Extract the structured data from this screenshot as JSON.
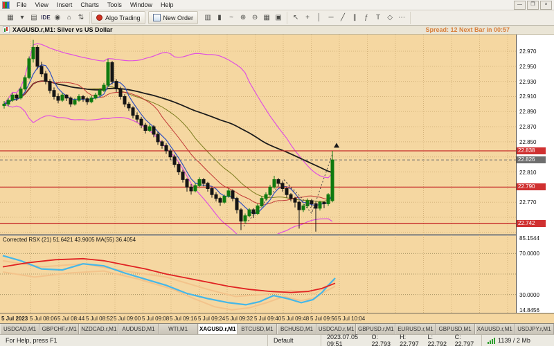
{
  "colors": {
    "chart_bg": "#f5d7a1",
    "grid": "#d4b37b",
    "red_line": "#c62828",
    "line_label_bg": "#d03030",
    "bid_label_bg": "#6e6e6e",
    "spread_text": "#d9803c",
    "up_candle": "#0f7a0f",
    "down_candle": "#151515",
    "ma_fast_blue": "#2e4fc0",
    "ma_mid_red": "#c03434",
    "ma_olive": "#7c7c1e",
    "ma_slow_black": "#1c1c1c",
    "bollinger": "#e050e0",
    "rsx_main": "#45b7e8",
    "rsx_signal": "#e02222",
    "rsx_band": "#f3c38b"
  },
  "menu": {
    "items": [
      "File",
      "View",
      "Insert",
      "Charts",
      "Tools",
      "Window",
      "Help"
    ],
    "window_controls": [
      {
        "name": "minimize-button",
        "glyph": "—"
      },
      {
        "name": "restore-button",
        "glyph": "❐"
      },
      {
        "name": "close-button",
        "glyph": "×"
      }
    ]
  },
  "toolbar": {
    "algo_trading_label": "Algo Trading",
    "new_order_label": "New Order",
    "group1": [
      {
        "n": "new-chart",
        "g": "▦"
      },
      {
        "n": "chart-dropdown",
        "g": "▾"
      },
      {
        "n": "profiles",
        "g": "▤"
      },
      {
        "n": "metaeditor-ide",
        "g": "IDE",
        "txt": true
      },
      {
        "n": "broadcast",
        "g": "◉"
      },
      {
        "n": "home",
        "g": "⌂"
      },
      {
        "n": "refresh-arrows",
        "g": "⇅"
      }
    ],
    "group2": [
      {
        "n": "bar-chart-mode",
        "g": "▥"
      },
      {
        "n": "candle-chart-mode",
        "g": "▮"
      },
      {
        "n": "line-chart-mode",
        "g": "~"
      },
      {
        "n": "zoom-in",
        "g": "⊕"
      },
      {
        "n": "zoom-out",
        "g": "⊖"
      },
      {
        "n": "tile-windows",
        "g": "▦"
      },
      {
        "n": "cascade-windows",
        "g": "▣"
      }
    ],
    "group3": [
      {
        "n": "cursor",
        "g": "↖"
      },
      {
        "n": "crosshair",
        "g": "+"
      },
      {
        "n": "vertical-line-tool",
        "g": "│"
      },
      {
        "n": "horizontal-line-tool",
        "g": "─"
      },
      {
        "n": "trendline-tool",
        "g": "╱"
      },
      {
        "n": "channel-tool",
        "g": "∥"
      },
      {
        "n": "fibonacci-tool",
        "g": "ƒ"
      },
      {
        "n": "text-tool",
        "g": "T"
      },
      {
        "n": "shapes-tool",
        "g": "◇"
      },
      {
        "n": "more-tools",
        "g": "⋯"
      }
    ]
  },
  "chart": {
    "caption_title": "XAGUSD.r,M1: Silver vs US Dollar",
    "spread_info": "Spread: 12   Next Bar in 00:57",
    "indicator_label": "Corrected RSX (21) 51.6421 43.9005 MA(55) 36.4054"
  },
  "chart_data": {
    "main": {
      "type": "candlestick",
      "symbol": "XAGUSD.r",
      "timeframe": "M1",
      "price_range": [
        22.728,
        22.992
      ],
      "ticks": [
        22.97,
        22.95,
        22.93,
        22.91,
        22.89,
        22.87,
        22.85,
        22.81,
        22.77
      ],
      "price_lines": [
        {
          "price": 22.838,
          "label": "22.838"
        },
        {
          "price": 22.79,
          "label": "22.790"
        },
        {
          "price": 22.742,
          "label": "22.742"
        }
      ],
      "bid": {
        "price": 22.826,
        "label": "22.826"
      },
      "time_labels": [
        "5 Jul 2023",
        "5 Jul 08:06",
        "5 Jul 08:44",
        "5 Jul 08:52",
        "5 Jul 09:00",
        "5 Jul 09:08",
        "5 Jul 09:16",
        "5 Jul 09:24",
        "5 Jul 09:32",
        "5 Jul 09:40",
        "5 Jul 09:48",
        "5 Jul 09:56",
        "5 Jul 10:04"
      ],
      "pattern_lines": [
        [
          [
            352,
            22.738
          ],
          [
            410,
            22.8
          ],
          [
            450,
            22.755
          ],
          [
            480,
            22.834
          ]
        ],
        [
          [
            410,
            22.8
          ],
          [
            452,
            22.76
          ]
        ]
      ],
      "marker": {
        "x": 486,
        "price": 22.845,
        "type": "up-arrow"
      },
      "candles": [
        [
          22.898,
          22.904,
          22.894,
          22.9
        ],
        [
          22.9,
          22.908,
          22.897,
          22.905
        ],
        [
          22.905,
          22.915,
          22.903,
          22.912
        ],
        [
          22.912,
          22.914,
          22.904,
          22.908
        ],
        [
          22.908,
          22.923,
          22.906,
          22.92
        ],
        [
          22.92,
          22.938,
          22.918,
          22.935
        ],
        [
          22.935,
          22.963,
          22.933,
          22.96
        ],
        [
          22.96,
          22.985,
          22.955,
          22.975
        ],
        [
          22.975,
          22.978,
          22.946,
          22.95
        ],
        [
          22.95,
          22.956,
          22.936,
          22.94
        ],
        [
          22.94,
          22.944,
          22.926,
          22.93
        ],
        [
          22.93,
          22.933,
          22.914,
          22.918
        ],
        [
          22.918,
          22.922,
          22.906,
          22.91
        ],
        [
          22.91,
          22.914,
          22.901,
          22.905
        ],
        [
          22.905,
          22.915,
          22.903,
          22.912
        ],
        [
          22.912,
          22.913,
          22.904,
          22.908
        ],
        [
          22.908,
          22.91,
          22.896,
          22.9
        ],
        [
          22.9,
          22.908,
          22.898,
          22.905
        ],
        [
          22.905,
          22.913,
          22.903,
          22.91
        ],
        [
          22.91,
          22.912,
          22.903,
          22.907
        ],
        [
          22.907,
          22.909,
          22.899,
          22.903
        ],
        [
          22.903,
          22.911,
          22.901,
          22.908
        ],
        [
          22.908,
          22.915,
          22.906,
          22.912
        ],
        [
          22.912,
          22.92,
          22.91,
          22.918
        ],
        [
          22.918,
          22.928,
          22.916,
          22.925
        ],
        [
          22.925,
          22.96,
          22.923,
          22.955
        ],
        [
          22.955,
          22.957,
          22.926,
          22.93
        ],
        [
          22.93,
          22.933,
          22.916,
          22.92
        ],
        [
          22.92,
          22.923,
          22.906,
          22.91
        ],
        [
          22.91,
          22.913,
          22.896,
          22.9
        ],
        [
          22.9,
          22.903,
          22.891,
          22.895
        ],
        [
          22.895,
          22.897,
          22.881,
          22.885
        ],
        [
          22.885,
          22.889,
          22.876,
          22.88
        ],
        [
          22.88,
          22.883,
          22.868,
          22.872
        ],
        [
          22.872,
          22.875,
          22.861,
          22.865
        ],
        [
          22.865,
          22.873,
          22.863,
          22.87
        ],
        [
          22.87,
          22.872,
          22.856,
          22.86
        ],
        [
          22.86,
          22.863,
          22.846,
          22.85
        ],
        [
          22.85,
          22.852,
          22.841,
          22.845
        ],
        [
          22.845,
          22.848,
          22.834,
          22.838
        ],
        [
          22.838,
          22.841,
          22.826,
          22.83
        ],
        [
          22.83,
          22.833,
          22.816,
          22.82
        ],
        [
          22.82,
          22.823,
          22.806,
          22.81
        ],
        [
          22.81,
          22.813,
          22.796,
          22.8
        ],
        [
          22.8,
          22.802,
          22.784,
          22.79
        ],
        [
          22.79,
          22.794,
          22.78,
          22.785
        ],
        [
          22.785,
          22.795,
          22.783,
          22.792
        ],
        [
          22.792,
          22.803,
          22.79,
          22.8
        ],
        [
          22.8,
          22.802,
          22.791,
          22.795
        ],
        [
          22.795,
          22.797,
          22.784,
          22.788
        ],
        [
          22.788,
          22.79,
          22.776,
          22.78
        ],
        [
          22.78,
          22.783,
          22.771,
          22.775
        ],
        [
          22.775,
          22.777,
          22.765,
          22.77
        ],
        [
          22.77,
          22.78,
          22.768,
          22.778
        ],
        [
          22.778,
          22.788,
          22.776,
          22.785
        ],
        [
          22.785,
          22.787,
          22.771,
          22.775
        ],
        [
          22.775,
          22.777,
          22.755,
          22.76
        ],
        [
          22.76,
          22.762,
          22.733,
          22.745
        ],
        [
          22.745,
          22.755,
          22.741,
          22.752
        ],
        [
          22.752,
          22.762,
          22.75,
          22.76
        ],
        [
          22.76,
          22.762,
          22.749,
          22.755
        ],
        [
          22.755,
          22.768,
          22.753,
          22.765
        ],
        [
          22.765,
          22.778,
          22.763,
          22.775
        ],
        [
          22.775,
          22.783,
          22.772,
          22.78
        ],
        [
          22.78,
          22.793,
          22.778,
          22.79
        ],
        [
          22.79,
          22.805,
          22.788,
          22.8
        ],
        [
          22.8,
          22.802,
          22.791,
          22.795
        ],
        [
          22.795,
          22.797,
          22.784,
          22.788
        ],
        [
          22.788,
          22.79,
          22.776,
          22.78
        ],
        [
          22.78,
          22.782,
          22.771,
          22.775
        ],
        [
          22.775,
          22.777,
          22.763,
          22.77
        ],
        [
          22.77,
          22.772,
          22.735,
          22.76
        ],
        [
          22.76,
          22.768,
          22.757,
          22.765
        ],
        [
          22.765,
          22.775,
          22.762,
          22.772
        ],
        [
          22.772,
          22.774,
          22.764,
          22.768
        ],
        [
          22.768,
          22.77,
          22.731,
          22.762
        ],
        [
          22.762,
          22.772,
          22.759,
          22.77
        ],
        [
          22.77,
          22.771,
          22.762,
          22.768
        ],
        [
          22.768,
          22.782,
          22.765,
          22.78
        ],
        [
          22.772,
          22.838,
          22.77,
          22.826
        ]
      ]
    },
    "indicator": {
      "name": "Corrected RSX",
      "range": [
        14.8456,
        85.1544
      ],
      "levels": [
        70,
        50,
        30
      ],
      "axis_labels": [
        {
          "v": 85.1544,
          "t": "85.1544"
        },
        {
          "v": 70,
          "t": "70.0000"
        },
        {
          "v": 30,
          "t": "30.0000"
        },
        {
          "v": 14.8456,
          "t": "14.8456"
        }
      ],
      "series": [
        {
          "name": "rsx-upper-band",
          "color": "#f3c38b",
          "width": 2,
          "points": [
            [
              4,
              63
            ],
            [
              60,
              57
            ],
            [
              120,
              60
            ],
            [
              180,
              53
            ],
            [
              240,
              47
            ],
            [
              300,
              35
            ],
            [
              340,
              28
            ],
            [
              380,
              30
            ],
            [
              420,
              34
            ],
            [
              455,
              31
            ],
            [
              484,
              44
            ]
          ]
        },
        {
          "name": "rsx-lower-band",
          "color": "#f3c38b",
          "width": 2,
          "points": [
            [
              4,
              52
            ],
            [
              50,
              47
            ],
            [
              100,
              51
            ],
            [
              150,
              53
            ],
            [
              200,
              45
            ],
            [
              250,
              35
            ],
            [
              280,
              26
            ],
            [
              310,
              18
            ],
            [
              335,
              15
            ],
            [
              360,
              17
            ],
            [
              385,
              22
            ],
            [
              410,
              28
            ],
            [
              435,
              24
            ],
            [
              455,
              27
            ],
            [
              470,
              33
            ],
            [
              484,
              38
            ]
          ]
        },
        {
          "name": "rsx-main",
          "color": "#45b7e8",
          "width": 2.2,
          "points": [
            [
              4,
              68
            ],
            [
              30,
              63
            ],
            [
              60,
              55
            ],
            [
              90,
              54
            ],
            [
              120,
              60
            ],
            [
              150,
              58
            ],
            [
              180,
              51
            ],
            [
              210,
              45
            ],
            [
              240,
              39
            ],
            [
              270,
              31
            ],
            [
              300,
              26
            ],
            [
              330,
              22
            ],
            [
              355,
              20
            ],
            [
              375,
              23
            ],
            [
              395,
              29
            ],
            [
              415,
              26
            ],
            [
              435,
              22
            ],
            [
              452,
              25
            ],
            [
              465,
              32
            ],
            [
              474,
              39
            ],
            [
              484,
              46
            ]
          ]
        },
        {
          "name": "rsx-signal",
          "color": "#e02222",
          "width": 1.8,
          "points": [
            [
              4,
              57
            ],
            [
              40,
              61
            ],
            [
              80,
              64
            ],
            [
              120,
              65
            ],
            [
              150,
              63
            ],
            [
              180,
              59
            ],
            [
              210,
              55
            ],
            [
              240,
              50
            ],
            [
              270,
              46
            ],
            [
              300,
              42
            ],
            [
              330,
              38
            ],
            [
              360,
              35
            ],
            [
              390,
              33
            ],
            [
              420,
              32
            ],
            [
              445,
              33
            ],
            [
              465,
              36
            ],
            [
              484,
              41
            ]
          ]
        }
      ]
    }
  },
  "tabs": {
    "active_index": 5,
    "items": [
      "USDCAD,M1",
      "GBPCHF.r,M1",
      "NZDCAD.r,M1",
      "AUDUSD,M1",
      "WTI,M1",
      "XAGUSD.r,M1",
      "BTCUSD,M1",
      "BCHUSD,M1",
      "USDCAD.r,M1",
      "GBPUSD.r,M1",
      "EURUSD.r,M1",
      "GBPUSD,M1",
      "XAUUSD.r,M1",
      "USDJPY.r,M1"
    ]
  },
  "statusbar": {
    "help": "For Help, press F1",
    "profile": "Default",
    "time": "2023.07.05 09:51",
    "o": "O: 22.793",
    "h": "H: 22.797",
    "l": "L: 22.792",
    "c": "C: 22.797",
    "connection": "1139 / 2 Mb"
  }
}
